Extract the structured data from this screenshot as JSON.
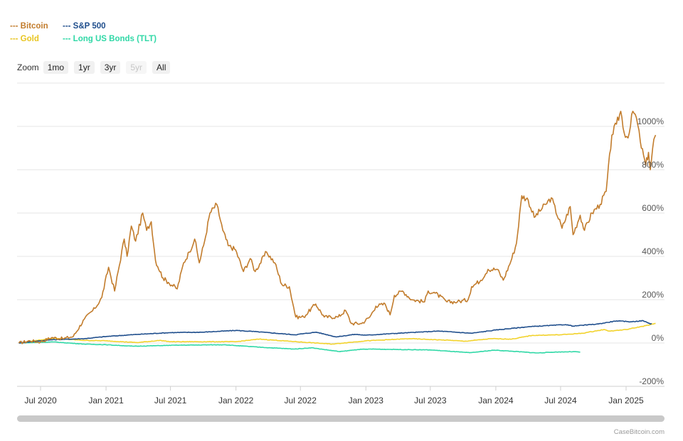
{
  "legend": [
    {
      "label": "--- Bitcoin",
      "color": "#c27c2c"
    },
    {
      "label": "--- S&P 500",
      "color": "#1f4e8c"
    },
    {
      "label": "--- Gold",
      "color": "#f2d22b"
    },
    {
      "label": "--- Long US Bonds (TLT)",
      "color": "#2fd8a6"
    }
  ],
  "zoom": {
    "label": "Zoom",
    "buttons": [
      {
        "label": "1mo",
        "enabled": true
      },
      {
        "label": "1yr",
        "enabled": true
      },
      {
        "label": "3yr",
        "enabled": true
      },
      {
        "label": "5yr",
        "enabled": false
      },
      {
        "label": "All",
        "enabled": true
      }
    ]
  },
  "credit": "CaseBitcoin.com",
  "chart_data": {
    "type": "line",
    "xlabel": "",
    "ylabel": "",
    "ylim": [
      -200,
      1200
    ],
    "yticks": [
      {
        "value": 1000,
        "label": "1000%"
      },
      {
        "value": 800,
        "label": "800%"
      },
      {
        "value": 600,
        "label": "600%"
      },
      {
        "value": 400,
        "label": "400%"
      },
      {
        "value": 200,
        "label": "200%"
      },
      {
        "value": 0,
        "label": "0%"
      },
      {
        "value": -200,
        "label": "-200%"
      }
    ],
    "xlim": [
      "2020-05-01",
      "2025-03-25"
    ],
    "xticks": [
      {
        "date": "2020-07-01",
        "label": "Jul 2020"
      },
      {
        "date": "2021-01-01",
        "label": "Jan 2021"
      },
      {
        "date": "2021-07-01",
        "label": "Jul 2021"
      },
      {
        "date": "2022-01-01",
        "label": "Jan 2022"
      },
      {
        "date": "2022-07-01",
        "label": "Jul 2022"
      },
      {
        "date": "2023-01-01",
        "label": "Jan 2023"
      },
      {
        "date": "2023-07-01",
        "label": "Jul 2023"
      },
      {
        "date": "2024-01-01",
        "label": "Jan 2024"
      },
      {
        "date": "2024-07-01",
        "label": "Jul 2024"
      },
      {
        "date": "2025-01-01",
        "label": "Jan 2025"
      }
    ],
    "grid": true,
    "legend_position": "top-left",
    "series": [
      {
        "name": "Bitcoin",
        "color": "#c27c2c",
        "points": [
          [
            "2020-05-01",
            0
          ],
          [
            "2020-06-01",
            10
          ],
          [
            "2020-07-01",
            5
          ],
          [
            "2020-08-01",
            25
          ],
          [
            "2020-09-01",
            20
          ],
          [
            "2020-10-01",
            30
          ],
          [
            "2020-11-01",
            110
          ],
          [
            "2020-12-01",
            160
          ],
          [
            "2020-12-20",
            210
          ],
          [
            "2021-01-08",
            350
          ],
          [
            "2021-01-25",
            240
          ],
          [
            "2021-02-21",
            480
          ],
          [
            "2021-03-01",
            400
          ],
          [
            "2021-03-13",
            540
          ],
          [
            "2021-03-25",
            470
          ],
          [
            "2021-04-14",
            600
          ],
          [
            "2021-04-25",
            520
          ],
          [
            "2021-05-08",
            560
          ],
          [
            "2021-05-20",
            380
          ],
          [
            "2021-06-10",
            300
          ],
          [
            "2021-06-25",
            280
          ],
          [
            "2021-07-20",
            250
          ],
          [
            "2021-08-07",
            370
          ],
          [
            "2021-08-23",
            420
          ],
          [
            "2021-09-07",
            480
          ],
          [
            "2021-09-20",
            370
          ],
          [
            "2021-10-05",
            470
          ],
          [
            "2021-10-20",
            600
          ],
          [
            "2021-11-08",
            640
          ],
          [
            "2021-11-25",
            520
          ],
          [
            "2021-12-10",
            450
          ],
          [
            "2021-12-31",
            430
          ],
          [
            "2022-01-22",
            330
          ],
          [
            "2022-02-10",
            390
          ],
          [
            "2022-02-24",
            330
          ],
          [
            "2022-03-28",
            420
          ],
          [
            "2022-04-20",
            370
          ],
          [
            "2022-05-10",
            270
          ],
          [
            "2022-05-31",
            260
          ],
          [
            "2022-06-18",
            120
          ],
          [
            "2022-07-10",
            120
          ],
          [
            "2022-08-13",
            180
          ],
          [
            "2022-09-06",
            120
          ],
          [
            "2022-10-15",
            120
          ],
          [
            "2022-11-05",
            150
          ],
          [
            "2022-11-21",
            90
          ],
          [
            "2022-12-20",
            90
          ],
          [
            "2023-01-12",
            120
          ],
          [
            "2023-01-29",
            170
          ],
          [
            "2023-02-24",
            180
          ],
          [
            "2023-03-10",
            130
          ],
          [
            "2023-03-22",
            220
          ],
          [
            "2023-04-14",
            240
          ],
          [
            "2023-05-10",
            200
          ],
          [
            "2023-06-15",
            190
          ],
          [
            "2023-06-25",
            240
          ],
          [
            "2023-07-15",
            230
          ],
          [
            "2023-08-17",
            190
          ],
          [
            "2023-09-15",
            190
          ],
          [
            "2023-10-15",
            200
          ],
          [
            "2023-10-25",
            260
          ],
          [
            "2023-11-20",
            290
          ],
          [
            "2023-12-10",
            340
          ],
          [
            "2024-01-05",
            340
          ],
          [
            "2024-01-22",
            290
          ],
          [
            "2024-02-15",
            390
          ],
          [
            "2024-02-28",
            460
          ],
          [
            "2024-03-14",
            680
          ],
          [
            "2024-04-01",
            660
          ],
          [
            "2024-04-18",
            580
          ],
          [
            "2024-05-20",
            640
          ],
          [
            "2024-06-05",
            670
          ],
          [
            "2024-07-05",
            530
          ],
          [
            "2024-07-28",
            630
          ],
          [
            "2024-08-05",
            500
          ],
          [
            "2024-08-25",
            590
          ],
          [
            "2024-09-06",
            520
          ],
          [
            "2024-09-27",
            600
          ],
          [
            "2024-10-20",
            640
          ],
          [
            "2024-11-06",
            700
          ],
          [
            "2024-11-22",
            960
          ],
          [
            "2024-12-05",
            1010
          ],
          [
            "2024-12-17",
            1070
          ],
          [
            "2024-12-30",
            950
          ],
          [
            "2025-01-10",
            970
          ],
          [
            "2025-01-20",
            1070
          ],
          [
            "2025-01-30",
            1040
          ],
          [
            "2025-02-10",
            930
          ],
          [
            "2025-02-25",
            820
          ],
          [
            "2025-03-05",
            880
          ],
          [
            "2025-03-10",
            800
          ],
          [
            "2025-03-20",
            940
          ],
          [
            "2025-03-25",
            960
          ]
        ]
      },
      {
        "name": "S&P 500",
        "color": "#1f4e8c",
        "points": [
          [
            "2020-05-01",
            0
          ],
          [
            "2020-08-01",
            15
          ],
          [
            "2020-11-01",
            20
          ],
          [
            "2021-01-01",
            30
          ],
          [
            "2021-04-01",
            40
          ],
          [
            "2021-07-01",
            48
          ],
          [
            "2021-10-01",
            50
          ],
          [
            "2022-01-01",
            58
          ],
          [
            "2022-03-01",
            52
          ],
          [
            "2022-06-15",
            38
          ],
          [
            "2022-08-15",
            50
          ],
          [
            "2022-10-10",
            28
          ],
          [
            "2022-12-01",
            40
          ],
          [
            "2023-01-01",
            36
          ],
          [
            "2023-04-01",
            45
          ],
          [
            "2023-07-25",
            55
          ],
          [
            "2023-10-25",
            45
          ],
          [
            "2024-01-01",
            60
          ],
          [
            "2024-04-01",
            75
          ],
          [
            "2024-07-15",
            85
          ],
          [
            "2024-08-05",
            78
          ],
          [
            "2024-10-15",
            88
          ],
          [
            "2024-12-05",
            102
          ],
          [
            "2025-01-15",
            98
          ],
          [
            "2025-02-18",
            103
          ],
          [
            "2025-03-10",
            88
          ],
          [
            "2025-03-14",
            90
          ]
        ]
      },
      {
        "name": "Gold",
        "color": "#f2d22b",
        "points": [
          [
            "2020-05-01",
            0
          ],
          [
            "2020-08-05",
            22
          ],
          [
            "2020-11-01",
            12
          ],
          [
            "2021-01-01",
            10
          ],
          [
            "2021-03-30",
            2
          ],
          [
            "2021-06-01",
            12
          ],
          [
            "2021-07-01",
            6
          ],
          [
            "2022-01-01",
            6
          ],
          [
            "2022-03-08",
            18
          ],
          [
            "2022-06-01",
            8
          ],
          [
            "2022-09-28",
            -5
          ],
          [
            "2022-12-01",
            5
          ],
          [
            "2023-01-01",
            10
          ],
          [
            "2023-05-04",
            20
          ],
          [
            "2023-09-01",
            12
          ],
          [
            "2023-10-05",
            8
          ],
          [
            "2023-12-20",
            20
          ],
          [
            "2024-02-15",
            18
          ],
          [
            "2024-04-12",
            35
          ],
          [
            "2024-07-01",
            38
          ],
          [
            "2024-09-01",
            45
          ],
          [
            "2024-10-30",
            62
          ],
          [
            "2024-11-15",
            55
          ],
          [
            "2025-01-01",
            62
          ],
          [
            "2025-02-25",
            80
          ],
          [
            "2025-03-25",
            90
          ]
        ]
      },
      {
        "name": "Long US Bonds (TLT)",
        "color": "#2fd8a6",
        "points": [
          [
            "2020-05-01",
            0
          ],
          [
            "2020-08-05",
            5
          ],
          [
            "2020-11-01",
            -5
          ],
          [
            "2021-01-01",
            -8
          ],
          [
            "2021-03-20",
            -15
          ],
          [
            "2021-07-20",
            -10
          ],
          [
            "2021-12-01",
            -8
          ],
          [
            "2022-01-01",
            -12
          ],
          [
            "2022-03-15",
            -20
          ],
          [
            "2022-06-15",
            -28
          ],
          [
            "2022-08-01",
            -22
          ],
          [
            "2022-10-20",
            -40
          ],
          [
            "2022-12-10",
            -30
          ],
          [
            "2023-01-15",
            -28
          ],
          [
            "2023-04-01",
            -30
          ],
          [
            "2023-07-01",
            -32
          ],
          [
            "2023-10-20",
            -45
          ],
          [
            "2023-12-28",
            -33
          ],
          [
            "2024-02-15",
            -38
          ],
          [
            "2024-04-25",
            -46
          ],
          [
            "2024-06-15",
            -42
          ],
          [
            "2024-08-05",
            -40
          ],
          [
            "2024-08-25",
            -42
          ]
        ]
      }
    ]
  }
}
